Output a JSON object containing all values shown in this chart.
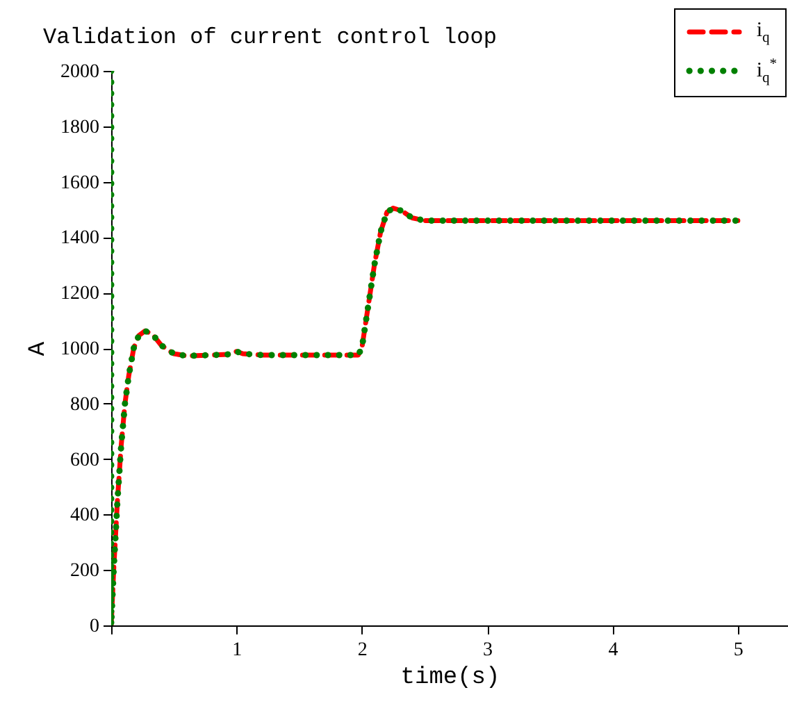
{
  "chart_data": {
    "type": "line",
    "title": "Validation of current control loop",
    "xlabel": "time(s)",
    "ylabel": "A",
    "xlim": [
      0,
      5.4
    ],
    "xticks": [
      {
        "value": 0,
        "label": null
      },
      1,
      2,
      3,
      4,
      5
    ],
    "ylim": [
      0,
      2000
    ],
    "yticks": [
      0,
      200,
      400,
      600,
      800,
      1000,
      1200,
      1400,
      1600,
      1800,
      2000
    ],
    "grid": false,
    "legend": "top right",
    "marker": "none",
    "series": [
      {
        "name": "i$_{q}$",
        "color": "#ff0000",
        "line_style": "dashed",
        "x": [
          0,
          0.02,
          0.05,
          0.08,
          0.11,
          0.14,
          0.18,
          0.22,
          0.27,
          0.33,
          0.4,
          0.5,
          0.6,
          0.8,
          0.95,
          1.0,
          1.05,
          1.2,
          1.97,
          2.0,
          2.05,
          2.1,
          2.15,
          2.2,
          2.25,
          2.32,
          2.4,
          2.5,
          5.0
        ],
        "values": [
          0,
          200,
          450,
          650,
          800,
          900,
          1000,
          1045,
          1062,
          1050,
          1010,
          980,
          972,
          975,
          978,
          988,
          980,
          975,
          975,
          1000,
          1150,
          1300,
          1420,
          1490,
          1505,
          1495,
          1470,
          1460,
          1460
        ]
      },
      {
        "name": "i$_{q}$$^{*}$",
        "color": "#008000",
        "line_style": "dotted",
        "x": [
          0,
          0,
          0.02,
          0.05,
          0.08,
          0.11,
          0.14,
          0.18,
          0.22,
          0.27,
          0.33,
          0.4,
          0.5,
          0.6,
          0.8,
          0.95,
          1.0,
          1.05,
          1.2,
          1.97,
          2.0,
          2.05,
          2.1,
          2.15,
          2.2,
          2.25,
          2.32,
          2.4,
          2.5,
          5.0
        ],
        "values": [
          2000,
          0,
          200,
          450,
          650,
          800,
          900,
          1000,
          1045,
          1062,
          1050,
          1010,
          980,
          972,
          975,
          978,
          988,
          980,
          975,
          975,
          1000,
          1150,
          1300,
          1420,
          1490,
          1505,
          1495,
          1470,
          1460,
          1460
        ]
      }
    ]
  }
}
